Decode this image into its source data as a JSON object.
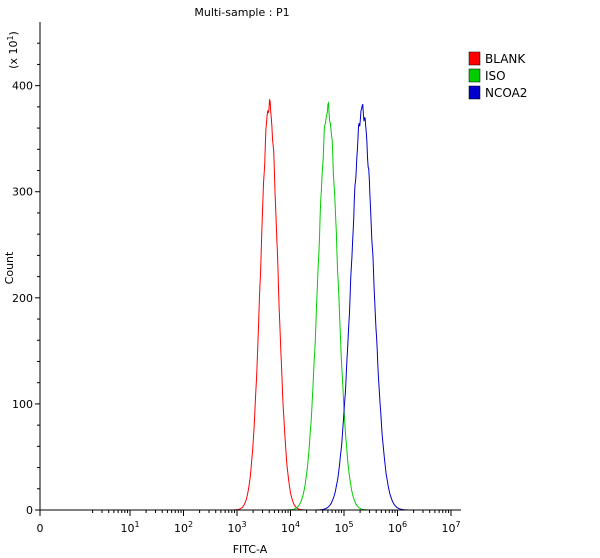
{
  "chart_data": {
    "type": "line",
    "title": "Multi-sample : P1",
    "xlabel": "FITC-A",
    "ylabel": "Count",
    "y_multiplier_label": "(x 10",
    "y_multiplier_exp": "1",
    "y_multiplier_close": ")",
    "x_scale": "log",
    "xlim": [
      0,
      10000000
    ],
    "ylim": [
      0,
      460
    ],
    "grid": false,
    "legend_position": "top-right",
    "x_ticks": [
      {
        "base": "0",
        "exp": ""
      },
      {
        "base": "10",
        "exp": "1"
      },
      {
        "base": "10",
        "exp": "2"
      },
      {
        "base": "10",
        "exp": "3"
      },
      {
        "base": "10",
        "exp": "4"
      },
      {
        "base": "10",
        "exp": "5"
      },
      {
        "base": "10",
        "exp": "6"
      },
      {
        "base": "10",
        "exp": "7"
      }
    ],
    "y_ticks": [
      "0",
      "100",
      "200",
      "300",
      "400"
    ],
    "series": [
      {
        "name": "BLANK",
        "color": "#ff0000",
        "peak_x": 4000,
        "peak_count": 382
      },
      {
        "name": "ISO",
        "color": "#00cc00",
        "peak_x": 50000,
        "peak_count": 378
      },
      {
        "name": "NCOA2",
        "color": "#0000cc",
        "peak_x": 220000,
        "peak_count": 378
      }
    ]
  }
}
